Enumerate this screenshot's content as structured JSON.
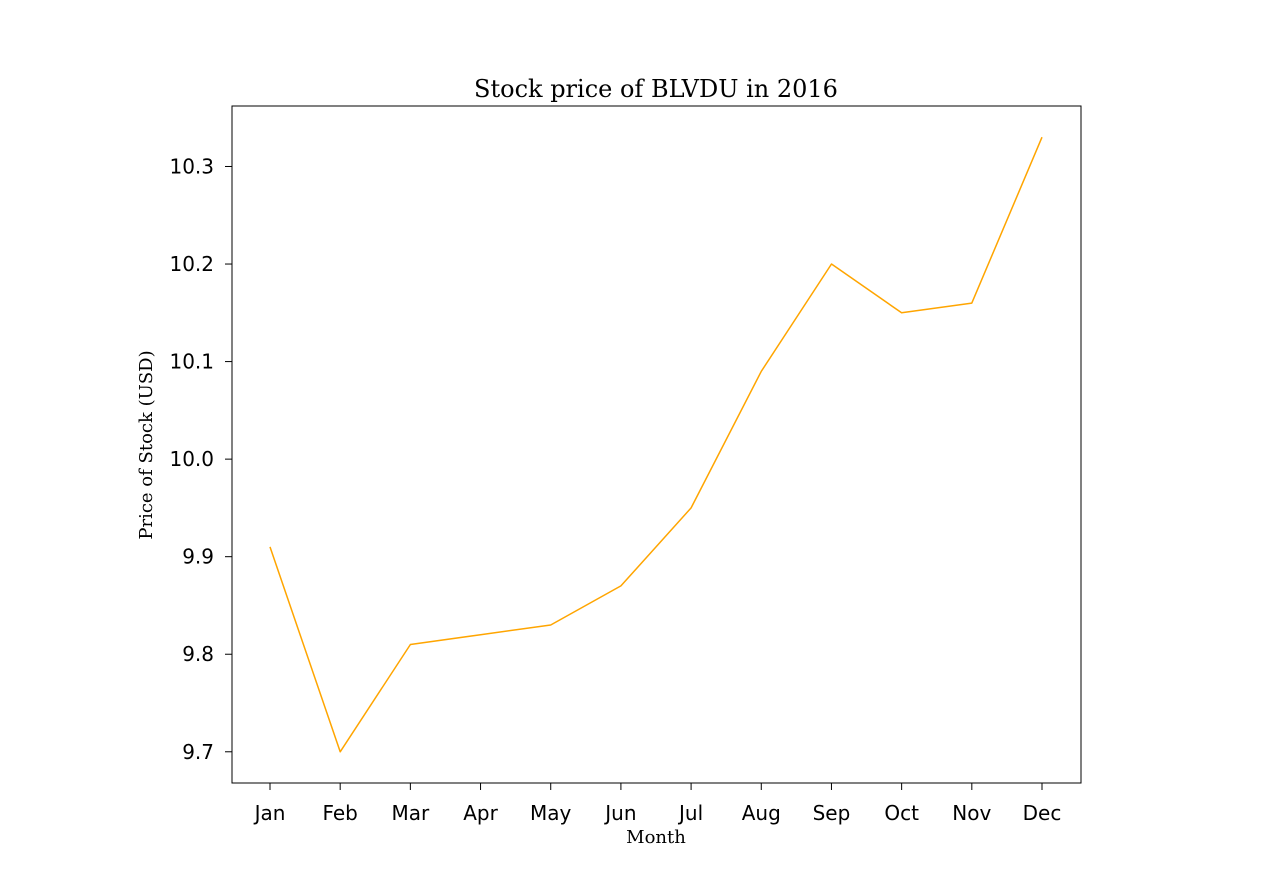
{
  "chart_data": {
    "type": "line",
    "title": "Stock price of BLVDU in 2016",
    "xlabel": "Month",
    "ylabel": "Price of Stock (USD)",
    "categories": [
      "Jan",
      "Feb",
      "Mar",
      "Apr",
      "May",
      "Jun",
      "Jul",
      "Aug",
      "Sep",
      "Oct",
      "Nov",
      "Dec"
    ],
    "series": [
      {
        "values": [
          9.91,
          9.7,
          9.81,
          9.82,
          9.83,
          9.87,
          9.95,
          10.09,
          10.2,
          10.15,
          10.16,
          10.33
        ],
        "color": "#ffa500"
      }
    ],
    "yticks": [
      "9.7",
      "9.8",
      "9.9",
      "10.0",
      "10.1",
      "10.2",
      "10.3"
    ],
    "ylim": [
      9.668,
      10.362
    ],
    "grid": false,
    "legend": "none"
  }
}
